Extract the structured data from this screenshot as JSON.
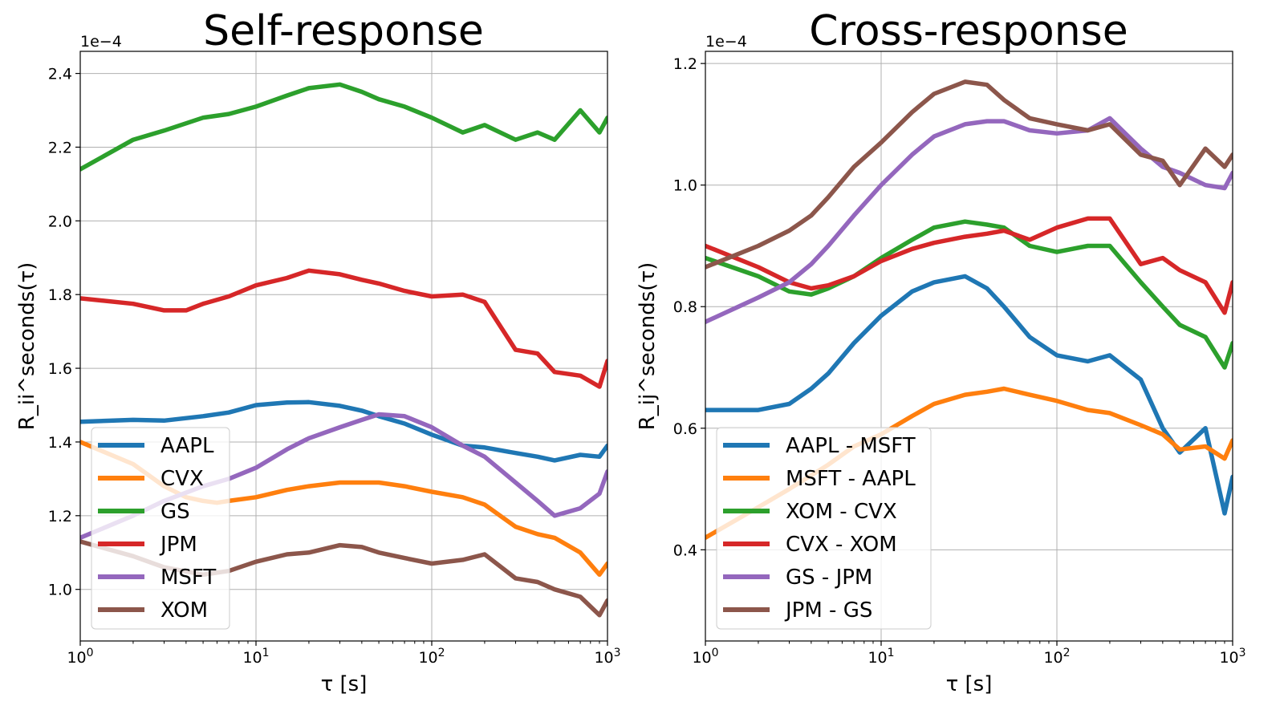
{
  "chart_data": [
    {
      "type": "line",
      "title": "Self-response",
      "xlabel": "τ [s]",
      "ylabel": "R_ii^seconds(τ)",
      "y_multiplier": "1e−4",
      "x_scale": "log",
      "xlim": [
        1,
        1000
      ],
      "ylim": [
        0.86,
        2.46
      ],
      "x_ticks": [
        {
          "value": 1,
          "base": "10",
          "exp": "0"
        },
        {
          "value": 10,
          "base": "10",
          "exp": "1"
        },
        {
          "value": 100,
          "base": "10",
          "exp": "2"
        },
        {
          "value": 1000,
          "base": "10",
          "exp": "3"
        }
      ],
      "y_ticks": [
        "1.0",
        "1.2",
        "1.4",
        "1.6",
        "1.8",
        "2.0",
        "2.2",
        "2.4"
      ],
      "grid": true,
      "legend": "bottom-left",
      "series": [
        {
          "name": "AAPL",
          "color": "#1f77b4",
          "x": [
            1,
            2,
            3,
            5,
            7,
            10,
            15,
            20,
            30,
            40,
            50,
            70,
            100,
            150,
            200,
            300,
            400,
            500,
            700,
            900,
            1000
          ],
          "values": [
            1.455,
            1.46,
            1.458,
            1.47,
            1.48,
            1.5,
            1.507,
            1.508,
            1.498,
            1.485,
            1.47,
            1.45,
            1.42,
            1.39,
            1.385,
            1.37,
            1.36,
            1.35,
            1.365,
            1.36,
            1.39
          ]
        },
        {
          "name": "CVX",
          "color": "#ff7f0e",
          "x": [
            1,
            2,
            3,
            4,
            5,
            6,
            7,
            10,
            15,
            20,
            30,
            40,
            50,
            70,
            100,
            150,
            200,
            300,
            400,
            500,
            700,
            900,
            1000
          ],
          "values": [
            1.4,
            1.34,
            1.28,
            1.25,
            1.24,
            1.235,
            1.24,
            1.25,
            1.27,
            1.28,
            1.29,
            1.29,
            1.29,
            1.28,
            1.265,
            1.25,
            1.23,
            1.17,
            1.15,
            1.14,
            1.1,
            1.04,
            1.07
          ]
        },
        {
          "name": "GS",
          "color": "#2ca02c",
          "x": [
            1,
            2,
            3,
            5,
            7,
            10,
            15,
            20,
            30,
            40,
            50,
            70,
            100,
            150,
            200,
            300,
            400,
            500,
            700,
            900,
            1000
          ],
          "values": [
            2.14,
            2.22,
            2.245,
            2.28,
            2.29,
            2.31,
            2.34,
            2.36,
            2.37,
            2.35,
            2.33,
            2.31,
            2.28,
            2.24,
            2.26,
            2.22,
            2.24,
            2.22,
            2.3,
            2.24,
            2.28
          ]
        },
        {
          "name": "JPM",
          "color": "#d62728",
          "x": [
            1,
            2,
            3,
            4,
            5,
            7,
            10,
            15,
            20,
            30,
            40,
            50,
            70,
            100,
            150,
            200,
            300,
            400,
            500,
            700,
            900,
            1000
          ],
          "values": [
            1.79,
            1.775,
            1.757,
            1.757,
            1.775,
            1.795,
            1.825,
            1.845,
            1.865,
            1.855,
            1.84,
            1.83,
            1.81,
            1.795,
            1.8,
            1.78,
            1.65,
            1.64,
            1.59,
            1.58,
            1.55,
            1.62
          ]
        },
        {
          "name": "MSFT",
          "color": "#9467bd",
          "x": [
            1,
            2,
            3,
            5,
            7,
            10,
            15,
            20,
            30,
            40,
            50,
            70,
            100,
            150,
            200,
            300,
            400,
            500,
            700,
            900,
            1000
          ],
          "values": [
            1.14,
            1.2,
            1.24,
            1.28,
            1.3,
            1.33,
            1.38,
            1.41,
            1.44,
            1.46,
            1.475,
            1.47,
            1.44,
            1.39,
            1.36,
            1.29,
            1.24,
            1.2,
            1.22,
            1.26,
            1.32
          ]
        },
        {
          "name": "XOM",
          "color": "#8c564b",
          "x": [
            1,
            2,
            3,
            5,
            7,
            10,
            15,
            20,
            30,
            40,
            50,
            70,
            100,
            150,
            200,
            300,
            400,
            500,
            700,
            900,
            1000
          ],
          "values": [
            1.13,
            1.09,
            1.06,
            1.04,
            1.05,
            1.075,
            1.095,
            1.1,
            1.12,
            1.115,
            1.1,
            1.085,
            1.07,
            1.08,
            1.095,
            1.03,
            1.02,
            1.0,
            0.98,
            0.93,
            0.97
          ]
        }
      ]
    },
    {
      "type": "line",
      "title": "Cross-response",
      "xlabel": "τ [s]",
      "ylabel": "R_ij^seconds(τ)",
      "y_multiplier": "1e−4",
      "x_scale": "log",
      "xlim": [
        1,
        1000
      ],
      "ylim": [
        0.25,
        1.22
      ],
      "x_ticks": [
        {
          "value": 1,
          "base": "10",
          "exp": "0"
        },
        {
          "value": 10,
          "base": "10",
          "exp": "1"
        },
        {
          "value": 100,
          "base": "10",
          "exp": "2"
        },
        {
          "value": 1000,
          "base": "10",
          "exp": "3"
        }
      ],
      "y_ticks": [
        "0.4",
        "0.6",
        "0.8",
        "1.0",
        "1.2"
      ],
      "grid": true,
      "legend": "bottom-left",
      "series": [
        {
          "name": "AAPL - MSFT",
          "color": "#1f77b4",
          "x": [
            1,
            2,
            3,
            4,
            5,
            7,
            10,
            15,
            20,
            30,
            40,
            50,
            70,
            100,
            150,
            200,
            300,
            400,
            500,
            700,
            900,
            1000
          ],
          "values": [
            0.63,
            0.63,
            0.64,
            0.665,
            0.69,
            0.74,
            0.785,
            0.825,
            0.84,
            0.85,
            0.83,
            0.8,
            0.75,
            0.72,
            0.71,
            0.72,
            0.68,
            0.6,
            0.56,
            0.6,
            0.46,
            0.52
          ]
        },
        {
          "name": "MSFT - AAPL",
          "color": "#ff7f0e",
          "x": [
            1,
            2,
            3,
            5,
            7,
            10,
            15,
            20,
            30,
            40,
            50,
            70,
            100,
            150,
            200,
            300,
            400,
            500,
            700,
            900,
            1000
          ],
          "values": [
            0.42,
            0.47,
            0.5,
            0.54,
            0.57,
            0.59,
            0.62,
            0.64,
            0.655,
            0.66,
            0.665,
            0.655,
            0.645,
            0.63,
            0.625,
            0.605,
            0.59,
            0.565,
            0.57,
            0.55,
            0.58
          ]
        },
        {
          "name": "XOM - CVX",
          "color": "#2ca02c",
          "x": [
            1,
            2,
            3,
            4,
            5,
            7,
            10,
            15,
            20,
            30,
            40,
            50,
            70,
            100,
            150,
            200,
            300,
            400,
            500,
            700,
            900,
            1000
          ],
          "values": [
            0.88,
            0.85,
            0.825,
            0.82,
            0.83,
            0.85,
            0.88,
            0.91,
            0.93,
            0.94,
            0.935,
            0.93,
            0.9,
            0.89,
            0.9,
            0.9,
            0.84,
            0.8,
            0.77,
            0.75,
            0.7,
            0.74
          ]
        },
        {
          "name": "CVX - XOM",
          "color": "#d62728",
          "x": [
            1,
            2,
            3,
            4,
            5,
            7,
            10,
            15,
            20,
            30,
            40,
            50,
            70,
            100,
            150,
            200,
            300,
            400,
            500,
            700,
            900,
            1000
          ],
          "values": [
            0.9,
            0.865,
            0.84,
            0.83,
            0.835,
            0.85,
            0.875,
            0.895,
            0.905,
            0.915,
            0.92,
            0.925,
            0.91,
            0.93,
            0.945,
            0.945,
            0.87,
            0.88,
            0.86,
            0.84,
            0.79,
            0.84
          ]
        },
        {
          "name": "GS - JPM",
          "color": "#9467bd",
          "x": [
            1,
            2,
            3,
            4,
            5,
            7,
            10,
            15,
            20,
            30,
            40,
            50,
            70,
            100,
            150,
            200,
            300,
            400,
            500,
            700,
            900,
            1000
          ],
          "values": [
            0.775,
            0.815,
            0.84,
            0.87,
            0.9,
            0.95,
            1.0,
            1.05,
            1.08,
            1.1,
            1.105,
            1.105,
            1.09,
            1.085,
            1.09,
            1.11,
            1.06,
            1.03,
            1.02,
            1.0,
            0.995,
            1.02
          ]
        },
        {
          "name": "JPM - GS",
          "color": "#8c564b",
          "x": [
            1,
            2,
            3,
            4,
            5,
            7,
            10,
            15,
            20,
            30,
            40,
            50,
            70,
            100,
            150,
            200,
            300,
            400,
            500,
            700,
            900,
            1000
          ],
          "values": [
            0.865,
            0.9,
            0.925,
            0.95,
            0.98,
            1.03,
            1.07,
            1.12,
            1.15,
            1.17,
            1.165,
            1.14,
            1.11,
            1.1,
            1.09,
            1.1,
            1.05,
            1.04,
            1.0,
            1.06,
            1.03,
            1.05
          ]
        }
      ]
    }
  ]
}
